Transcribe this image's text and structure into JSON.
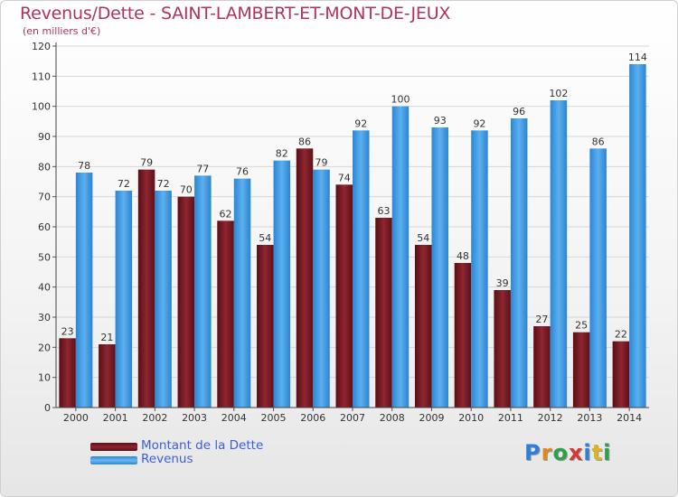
{
  "title": "Revenus/Dette - SAINT-LAMBERT-ET-MONT-DE-JEUX",
  "subtitle": "(en milliers d'€)",
  "chart_data": {
    "type": "bar",
    "categories": [
      "2000",
      "2001",
      "2002",
      "2003",
      "2004",
      "2005",
      "2006",
      "2007",
      "2008",
      "2009",
      "2010",
      "2011",
      "2012",
      "2013",
      "2014"
    ],
    "series": [
      {
        "name": "Montant de la Dette",
        "color": "#7a1a22",
        "values": [
          23,
          21,
          79,
          70,
          62,
          54,
          86,
          74,
          63,
          54,
          48,
          39,
          27,
          25,
          22
        ]
      },
      {
        "name": "Revenus",
        "color": "#3d9ae3",
        "values": [
          78,
          72,
          72,
          77,
          76,
          82,
          79,
          92,
          100,
          93,
          92,
          96,
          102,
          86,
          114
        ]
      }
    ],
    "ylim": [
      0,
      120
    ],
    "yticks": [
      0,
      10,
      20,
      30,
      40,
      50,
      60,
      70,
      80,
      90,
      100,
      110,
      120
    ],
    "grid": true,
    "legend": "bottom-left"
  },
  "legend": {
    "debt_label": "Montant de la Dette",
    "revenue_label": "Revenus"
  },
  "logo": {
    "text": "Proxiti",
    "letters": [
      {
        "ch": "P",
        "color": "#2f7fd6"
      },
      {
        "ch": "r",
        "color": "#e08a1e"
      },
      {
        "ch": "o",
        "color": "#2fa04a"
      },
      {
        "ch": "x",
        "color": "#d63a2f"
      },
      {
        "ch": "i",
        "color": "#2f7fd6"
      },
      {
        "ch": "t",
        "color": "#e0b41e"
      },
      {
        "ch": "i",
        "color": "#2fa04a"
      }
    ]
  }
}
